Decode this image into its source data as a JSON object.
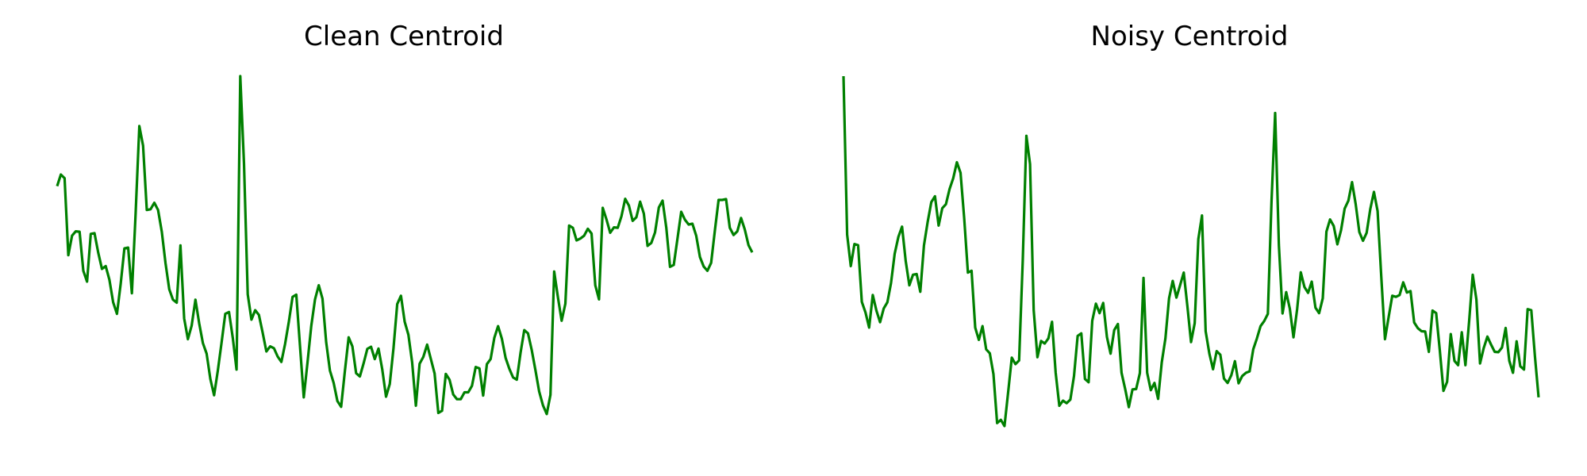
{
  "figure": {
    "line_color": "#008000"
  },
  "chart_data": [
    {
      "type": "line",
      "title": "Clean Centroid",
      "xlabel": "",
      "ylabel": "",
      "grid": false,
      "axes_visible": false,
      "ylim": [
        0,
        1
      ],
      "series": [
        {
          "values": [
            0.696,
            0.728,
            0.718,
            0.505,
            0.559,
            0.571,
            0.57,
            0.462,
            0.432,
            0.564,
            0.566,
            0.512,
            0.467,
            0.475,
            0.437,
            0.375,
            0.343,
            0.426,
            0.524,
            0.526,
            0.4,
            0.62,
            0.862,
            0.808,
            0.63,
            0.632,
            0.65,
            0.63,
            0.57,
            0.483,
            0.411,
            0.382,
            0.374,
            0.532,
            0.33,
            0.273,
            0.31,
            0.382,
            0.317,
            0.262,
            0.233,
            0.163,
            0.118,
            0.186,
            0.263,
            0.343,
            0.348,
            0.276,
            0.189,
            1.0,
            0.758,
            0.397,
            0.327,
            0.353,
            0.34,
            0.291,
            0.239,
            0.253,
            0.248,
            0.225,
            0.21,
            0.26,
            0.321,
            0.39,
            0.396,
            0.253,
            0.112,
            0.208,
            0.31,
            0.383,
            0.422,
            0.385,
            0.264,
            0.186,
            0.152,
            0.102,
            0.086,
            0.184,
            0.278,
            0.253,
            0.179,
            0.17,
            0.206,
            0.246,
            0.252,
            0.218,
            0.247,
            0.19,
            0.114,
            0.149,
            0.248,
            0.37,
            0.393,
            0.321,
            0.285,
            0.209,
            0.089,
            0.205,
            0.224,
            0.258,
            0.218,
            0.178,
            0.069,
            0.075,
            0.177,
            0.161,
            0.12,
            0.107,
            0.107,
            0.126,
            0.126,
            0.144,
            0.196,
            0.192,
            0.117,
            0.204,
            0.218,
            0.277,
            0.309,
            0.274,
            0.221,
            0.191,
            0.167,
            0.161,
            0.235,
            0.298,
            0.289,
            0.243,
            0.187,
            0.128,
            0.09,
            0.066,
            0.119,
            0.46,
            0.389,
            0.324,
            0.371,
            0.587,
            0.581,
            0.546,
            0.551,
            0.559,
            0.578,
            0.565,
            0.422,
            0.383,
            0.636,
            0.604,
            0.567,
            0.582,
            0.581,
            0.613,
            0.661,
            0.642,
            0.6,
            0.61,
            0.653,
            0.62,
            0.531,
            0.539,
            0.568,
            0.637,
            0.656,
            0.581,
            0.473,
            0.478,
            0.551,
            0.625,
            0.603,
            0.59,
            0.592,
            0.559,
            0.5,
            0.474,
            0.462,
            0.484,
            0.573,
            0.658,
            0.658,
            0.66,
            0.581,
            0.561,
            0.571,
            0.608,
            0.576,
            0.533,
            0.513
          ]
        }
      ]
    },
    {
      "type": "line",
      "title": "Noisy Centroid",
      "xlabel": "",
      "ylabel": "",
      "grid": false,
      "axes_visible": false,
      "ylim": [
        0,
        1
      ],
      "series": [
        {
          "values": [
            1.0,
            0.562,
            0.475,
            0.536,
            0.533,
            0.376,
            0.347,
            0.305,
            0.395,
            0.352,
            0.32,
            0.358,
            0.375,
            0.428,
            0.509,
            0.556,
            0.584,
            0.489,
            0.422,
            0.451,
            0.453,
            0.404,
            0.532,
            0.596,
            0.652,
            0.668,
            0.587,
            0.635,
            0.646,
            0.688,
            0.718,
            0.762,
            0.733,
            0.608,
            0.457,
            0.462,
            0.305,
            0.271,
            0.309,
            0.245,
            0.234,
            0.176,
            0.041,
            0.05,
            0.033,
            0.126,
            0.222,
            0.204,
            0.214,
            0.489,
            0.835,
            0.757,
            0.353,
            0.223,
            0.268,
            0.261,
            0.275,
            0.321,
            0.18,
            0.089,
            0.103,
            0.096,
            0.106,
            0.171,
            0.282,
            0.289,
            0.163,
            0.154,
            0.324,
            0.371,
            0.345,
            0.373,
            0.279,
            0.233,
            0.298,
            0.315,
            0.18,
            0.135,
            0.085,
            0.134,
            0.135,
            0.179,
            0.442,
            0.18,
            0.132,
            0.152,
            0.108,
            0.209,
            0.275,
            0.386,
            0.434,
            0.388,
            0.422,
            0.457,
            0.364,
            0.265,
            0.317,
            0.55,
            0.615,
            0.295,
            0.233,
            0.19,
            0.24,
            0.23,
            0.164,
            0.152,
            0.173,
            0.212,
            0.151,
            0.171,
            0.18,
            0.184,
            0.245,
            0.275,
            0.309,
            0.323,
            0.343,
            0.653,
            0.898,
            0.533,
            0.344,
            0.403,
            0.357,
            0.278,
            0.356,
            0.458,
            0.417,
            0.401,
            0.432,
            0.36,
            0.345,
            0.386,
            0.57,
            0.604,
            0.586,
            0.535,
            0.574,
            0.634,
            0.656,
            0.707,
            0.646,
            0.569,
            0.545,
            0.567,
            0.633,
            0.68,
            0.627,
            0.447,
            0.273,
            0.334,
            0.393,
            0.39,
            0.395,
            0.43,
            0.402,
            0.406,
            0.319,
            0.303,
            0.295,
            0.294,
            0.238,
            0.352,
            0.345,
            0.242,
            0.13,
            0.155,
            0.287,
            0.213,
            0.201,
            0.292,
            0.201,
            0.321,
            0.451,
            0.383,
            0.206,
            0.248,
            0.28,
            0.258,
            0.238,
            0.237,
            0.25,
            0.304,
            0.213,
            0.18,
            0.267,
            0.198,
            0.189,
            0.356,
            0.353,
            0.225,
            0.112
          ]
        }
      ]
    }
  ]
}
